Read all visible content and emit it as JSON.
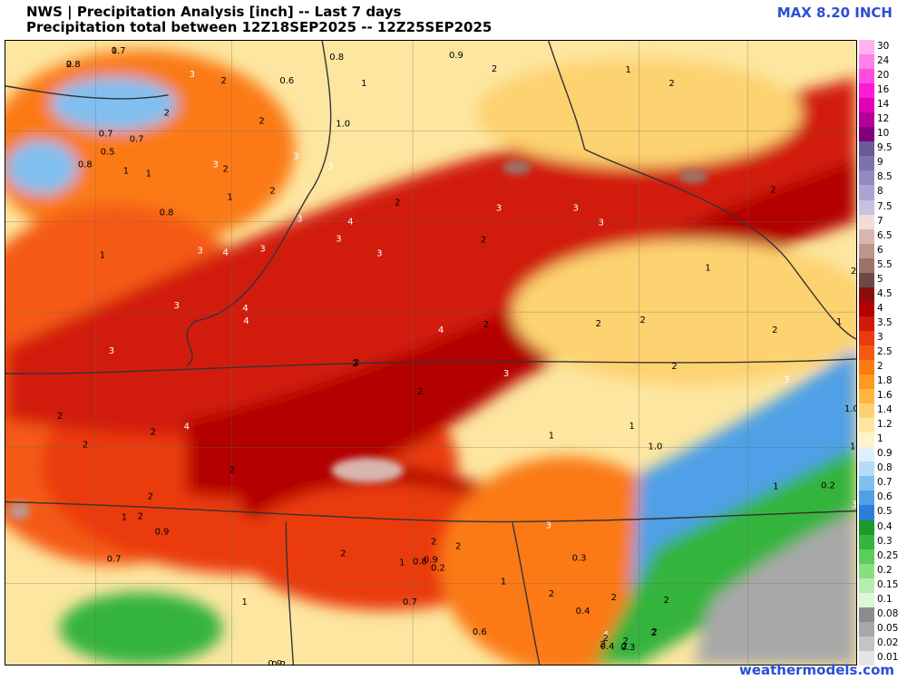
{
  "header": {
    "line1": "NWS | Precipitation Analysis [inch] -- Last 7 days",
    "line2": "Precipitation total between 12Z18SEP2025 -- 12Z25SEP2025",
    "max_label": "MAX 8.20 INCH"
  },
  "credit": "weathermodels.com",
  "legend": {
    "levels": [
      {
        "label": "30",
        "color": "#ffb3f0"
      },
      {
        "label": "24",
        "color": "#ff80e8"
      },
      {
        "label": "20",
        "color": "#ff4de0"
      },
      {
        "label": "16",
        "color": "#ff1ad6"
      },
      {
        "label": "14",
        "color": "#e000b8"
      },
      {
        "label": "12",
        "color": "#b3009a"
      },
      {
        "label": "10",
        "color": "#80007a"
      },
      {
        "label": "9.5",
        "color": "#6a5a9a"
      },
      {
        "label": "9",
        "color": "#7e72ad"
      },
      {
        "label": "8.5",
        "color": "#938bc0"
      },
      {
        "label": "8",
        "color": "#aaa4d0"
      },
      {
        "label": "7.5",
        "color": "#c6c2e0"
      },
      {
        "label": "7",
        "color": "#f2dcd6"
      },
      {
        "label": "6.5",
        "color": "#d9b6ad"
      },
      {
        "label": "6",
        "color": "#bf948a"
      },
      {
        "label": "5.5",
        "color": "#9e7167"
      },
      {
        "label": "5",
        "color": "#6e4a44"
      },
      {
        "label": "4.5",
        "color": "#8c0d0d"
      },
      {
        "label": "4",
        "color": "#b30000"
      },
      {
        "label": "3.5",
        "color": "#d11a0a"
      },
      {
        "label": "3",
        "color": "#ea3a10"
      },
      {
        "label": "2.5",
        "color": "#f45a12"
      },
      {
        "label": "2",
        "color": "#fb7a12"
      },
      {
        "label": "1.8",
        "color": "#fd9a20"
      },
      {
        "label": "1.6",
        "color": "#feb640"
      },
      {
        "label": "1.4",
        "color": "#fdd270"
      },
      {
        "label": "1.2",
        "color": "#fde6a0"
      },
      {
        "label": "1",
        "color": "#fff4c8"
      },
      {
        "label": "0.9",
        "color": "#dff0fb"
      },
      {
        "label": "0.8",
        "color": "#b4dcf6"
      },
      {
        "label": "0.7",
        "color": "#80c0f0"
      },
      {
        "label": "0.6",
        "color": "#4fa0e6"
      },
      {
        "label": "0.5",
        "color": "#2c7fd8"
      },
      {
        "label": "0.4",
        "color": "#1a9a2a"
      },
      {
        "label": "0.3",
        "color": "#36b43e"
      },
      {
        "label": "0.25",
        "color": "#5ccc5a"
      },
      {
        "label": "0.2",
        "color": "#8ade82"
      },
      {
        "label": "0.15",
        "color": "#b6ecb0"
      },
      {
        "label": "0.1",
        "color": "#dcf6d6"
      },
      {
        "label": "0.08",
        "color": "#8c8c8c"
      },
      {
        "label": "0.05",
        "color": "#a8a8a8"
      },
      {
        "label": "0.02",
        "color": "#c4c4c4"
      },
      {
        "label": "0.01",
        "color": "#e4e4e4"
      }
    ]
  },
  "map": {
    "region": "Mid-South / Tennessee Valley",
    "fill_regions": [
      {
        "name": "southwest-moderate",
        "color": "#fb7a12"
      },
      {
        "name": "heavy-band-north",
        "color": "#d11a0a"
      },
      {
        "name": "heavy-band-south",
        "color": "#b30000"
      },
      {
        "name": "appalachian-light",
        "color": "#fff4c8"
      },
      {
        "name": "mountain-blue",
        "color": "#4fa0e6"
      },
      {
        "name": "mountain-green",
        "color": "#36b43e"
      },
      {
        "name": "southeast-gray",
        "color": "#a8a8a8"
      }
    ],
    "contour_labels": [
      "0.8",
      "1",
      "0.9",
      "0.8",
      "0.6",
      "3",
      "2",
      "1",
      "1",
      "2",
      "0.7",
      "0.5",
      "0.7",
      "0.8",
      "2",
      "1",
      "1",
      "3",
      "2",
      "1.0",
      "3",
      "3",
      "2",
      "2",
      "1",
      "0.8",
      "2",
      "1",
      "3",
      "4",
      "3",
      "3",
      "3",
      "4",
      "3",
      "2",
      "3",
      "3",
      "3",
      "3",
      "4",
      "4",
      "3",
      "2",
      "2",
      "2",
      "3",
      "4",
      "2",
      "2",
      "2",
      "2",
      "1",
      "2",
      "1",
      "2",
      "2",
      "2",
      "1.0",
      "3",
      "4",
      "2",
      "2",
      "2",
      "2",
      "2",
      "2",
      "1",
      "0.9",
      "0.7",
      "1",
      "1",
      "1.0",
      "1",
      "0.2",
      "1",
      "3",
      "3",
      "2",
      "0.9",
      "0.8",
      "0.2",
      "1",
      "2",
      "1",
      "2",
      "0.3",
      "0.4",
      "2",
      "4",
      "2",
      "2",
      "2",
      "2",
      "2",
      "0.6",
      "0.7",
      "2",
      "1",
      "0.9",
      "0.2",
      "0.3",
      "0.4",
      "2",
      "2",
      "2",
      "0.7"
    ]
  }
}
